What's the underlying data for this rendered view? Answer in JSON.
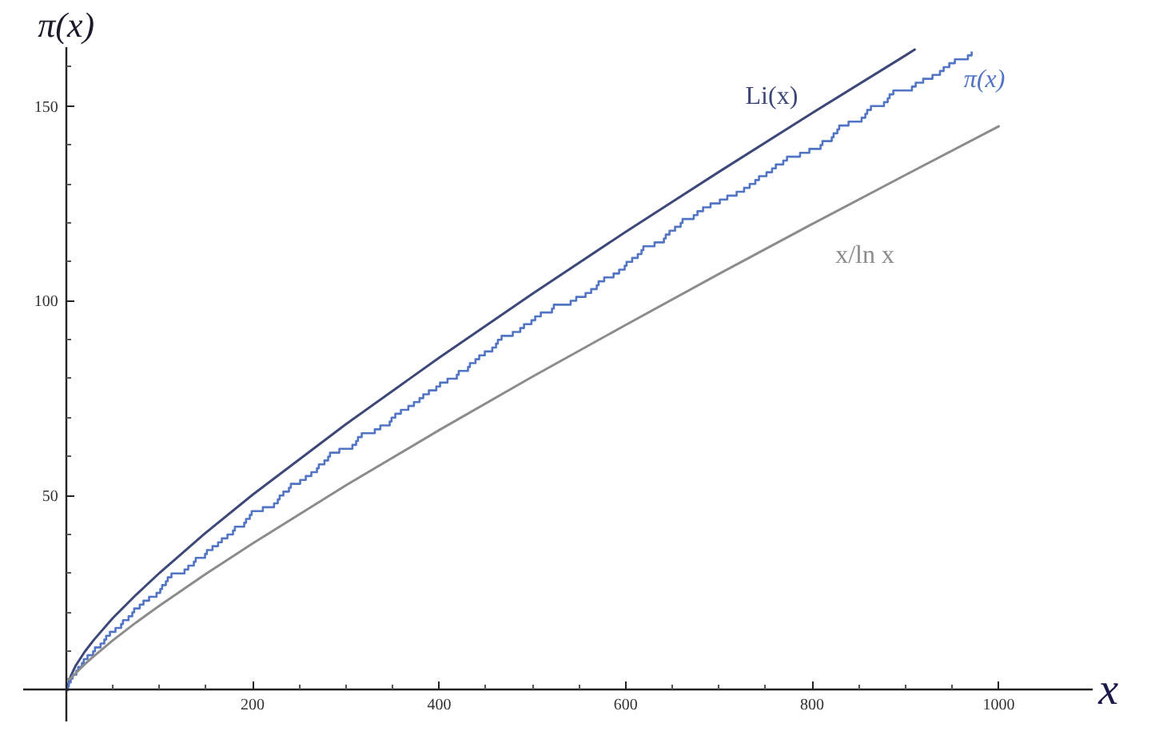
{
  "chart_data": {
    "type": "line",
    "xlabel": "x",
    "ylabel": "π(x)",
    "xlim": [
      -46,
      1100
    ],
    "ylim": [
      -8,
      165
    ],
    "xticks": [
      {
        "value": 50,
        "label": null
      },
      {
        "value": 100,
        "label": null
      },
      {
        "value": 150,
        "label": null
      },
      200,
      {
        "value": 250,
        "label": null
      },
      {
        "value": 300,
        "label": null
      },
      {
        "value": 350,
        "label": null
      },
      400,
      {
        "value": 450,
        "label": null
      },
      {
        "value": 500,
        "label": null
      },
      {
        "value": 550,
        "label": null
      },
      600,
      {
        "value": 650,
        "label": null
      },
      {
        "value": 700,
        "label": null
      },
      {
        "value": 750,
        "label": null
      },
      800,
      {
        "value": 850,
        "label": null
      },
      {
        "value": 900,
        "label": null
      },
      {
        "value": 950,
        "label": null
      },
      1000
    ],
    "yticks": [
      {
        "value": 10,
        "label": null
      },
      {
        "value": 20,
        "label": null
      },
      {
        "value": 30,
        "label": null
      },
      {
        "value": 40,
        "label": null
      },
      50,
      {
        "value": 60,
        "label": null
      },
      {
        "value": 70,
        "label": null
      },
      {
        "value": 80,
        "label": null
      },
      {
        "value": 90,
        "label": null
      },
      100,
      {
        "value": 110,
        "label": null
      },
      {
        "value": 120,
        "label": null
      },
      {
        "value": 130,
        "label": null
      },
      {
        "value": 140,
        "label": null
      },
      150,
      {
        "value": 160,
        "label": null
      }
    ],
    "series": [
      {
        "name": "Li(x)",
        "color": "#3d4878",
        "x": [
          2,
          3,
          5,
          10,
          20,
          30,
          50,
          75,
          100,
          150,
          200,
          300,
          400,
          500,
          600,
          700,
          800,
          900,
          910
        ],
        "values": [
          1.0,
          2.2,
          3.6,
          6.2,
          9.9,
          13.0,
          18.5,
          24.5,
          30.1,
          40.5,
          50.2,
          68.3,
          85.4,
          101.8,
          117.7,
          133.1,
          148.2,
          163.0,
          164.5
        ]
      },
      {
        "name": "π(x)",
        "type": "step",
        "color": "#5274c4",
        "x": [
          0,
          2,
          3,
          5,
          7,
          11,
          13,
          17,
          19,
          23,
          29,
          31,
          37,
          41,
          43,
          47,
          53,
          59,
          61,
          67,
          71,
          73,
          79,
          83,
          89,
          97,
          101,
          103,
          107,
          109,
          113,
          127,
          131,
          137,
          139,
          149,
          151,
          157,
          163,
          167,
          173,
          179,
          181,
          191,
          193,
          197,
          199,
          211,
          223,
          227,
          229,
          233,
          239,
          241,
          251,
          257,
          263,
          269,
          271,
          277,
          281,
          283,
          293,
          307,
          311,
          313,
          317,
          331,
          337,
          347,
          349,
          353,
          359,
          367,
          373,
          379,
          383,
          389,
          397,
          401,
          409,
          419,
          421,
          431,
          433,
          439,
          443,
          449,
          457,
          461,
          463,
          467,
          479,
          487,
          491,
          499,
          503,
          509,
          521,
          523,
          541,
          547,
          557,
          563,
          569,
          571,
          577,
          587,
          593,
          599,
          601,
          607,
          613,
          617,
          619,
          631,
          641,
          643,
          647,
          653,
          659,
          661,
          673,
          677,
          683,
          691,
          701,
          709,
          719,
          727,
          733,
          739,
          743,
          751,
          757,
          761,
          769,
          773,
          787,
          797,
          809,
          811,
          821,
          823,
          827,
          829,
          839,
          853,
          857,
          859,
          863,
          877,
          881,
          883,
          887,
          907,
          911,
          919,
          929,
          937,
          941,
          947,
          953,
          967,
          971
        ],
        "values": [
          0,
          1,
          2,
          3,
          4,
          5,
          6,
          7,
          8,
          9,
          10,
          11,
          12,
          13,
          14,
          15,
          16,
          17,
          18,
          19,
          20,
          21,
          22,
          23,
          24,
          25,
          26,
          27,
          28,
          29,
          30,
          31,
          32,
          33,
          34,
          35,
          36,
          37,
          38,
          39,
          40,
          41,
          42,
          43,
          44,
          45,
          46,
          47,
          48,
          49,
          50,
          51,
          52,
          53,
          54,
          55,
          56,
          57,
          58,
          59,
          60,
          61,
          62,
          63,
          64,
          65,
          66,
          67,
          68,
          69,
          70,
          71,
          72,
          73,
          74,
          75,
          76,
          77,
          78,
          79,
          80,
          81,
          82,
          83,
          84,
          85,
          86,
          87,
          88,
          89,
          90,
          91,
          92,
          93,
          94,
          95,
          96,
          97,
          98,
          99,
          100,
          101,
          102,
          103,
          104,
          105,
          106,
          107,
          108,
          109,
          110,
          111,
          112,
          113,
          114,
          115,
          116,
          117,
          118,
          119,
          120,
          121,
          122,
          123,
          124,
          125,
          126,
          127,
          128,
          129,
          130,
          131,
          132,
          133,
          134,
          135,
          136,
          137,
          138,
          139,
          140,
          141,
          142,
          143,
          144,
          145,
          146,
          147,
          148,
          149,
          150,
          151,
          152,
          153,
          154,
          155,
          156,
          157,
          158,
          159,
          160,
          161,
          162,
          163,
          164
        ]
      },
      {
        "name": "x/ln x",
        "color": "#8c8c8c",
        "x": [
          2,
          3,
          5,
          10,
          20,
          30,
          50,
          75,
          100,
          150,
          200,
          300,
          400,
          500,
          600,
          700,
          800,
          900,
          1000
        ],
        "values": [
          2.9,
          2.7,
          3.1,
          4.3,
          6.7,
          8.8,
          12.8,
          17.4,
          21.7,
          29.9,
          37.7,
          52.6,
          66.8,
          80.5,
          93.8,
          106.9,
          119.7,
          132.3,
          144.8
        ]
      }
    ]
  }
}
